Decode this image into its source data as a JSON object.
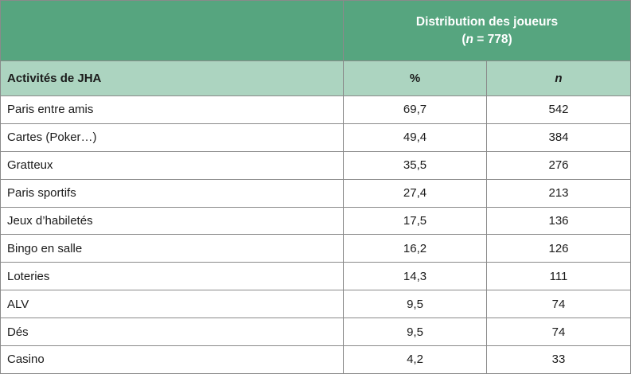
{
  "header": {
    "group_title": "Distribution des joueurs",
    "n_label": "n",
    "n_value": " = 778)",
    "n_open": "("
  },
  "columns": {
    "activity": "Activités de JHA",
    "percent": "%",
    "count": "n"
  },
  "rows": [
    {
      "activity": "Paris entre amis",
      "percent": "69,7",
      "count": "542"
    },
    {
      "activity": "Cartes (Poker…)",
      "percent": "49,4",
      "count": "384"
    },
    {
      "activity": "Gratteux",
      "percent": "35,5",
      "count": "276"
    },
    {
      "activity": "Paris sportifs",
      "percent": "27,4",
      "count": "213"
    },
    {
      "activity": "Jeux d’habiletés",
      "percent": "17,5",
      "count": "136"
    },
    {
      "activity": "Bingo en salle",
      "percent": "16,2",
      "count": "126"
    },
    {
      "activity": "Loteries",
      "percent": "14,3",
      "count": "111"
    },
    {
      "activity": "ALV",
      "percent": "9,5",
      "count": "74"
    },
    {
      "activity": "Dés",
      "percent": "9,5",
      "count": "74"
    },
    {
      "activity": "Casino",
      "percent": "4,2",
      "count": "33"
    }
  ],
  "colors": {
    "header_dark": "#56a57f",
    "header_light": "#acd4c0",
    "border": "#8a8a8a"
  }
}
